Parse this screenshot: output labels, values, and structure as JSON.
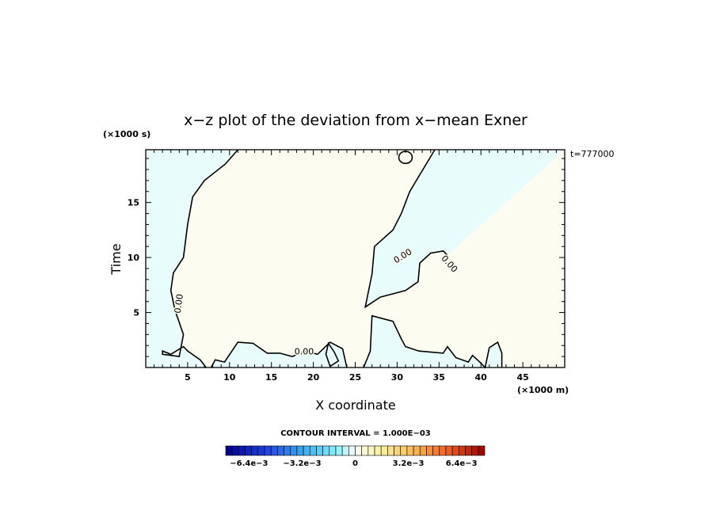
{
  "chart_data": {
    "type": "contour",
    "title": "x−z plot of the deviation from x−mean Exner",
    "xlabel": "X coordinate",
    "ylabel": "Time",
    "x_unit": "(×1000 m)",
    "y_unit": "(×1000 s)",
    "time_label": "t=777000",
    "xlim": [
      0,
      50
    ],
    "ylim": [
      0,
      19.8
    ],
    "x_ticks": [
      5,
      10,
      15,
      20,
      25,
      30,
      35,
      40,
      45
    ],
    "y_ticks": [
      5,
      10,
      15
    ],
    "contour_label": "0.00",
    "contour_interval_text": "CONTOUR INTERVAL = 1.000E−03",
    "colorbar": {
      "min": -0.0078,
      "max": 0.0078,
      "n_levels": 40,
      "tick_labels": [
        "−6.4e−3",
        "−3.2e−3",
        "0",
        "3.2e−3",
        "6.4e−3"
      ],
      "tick_values": [
        -0.0064,
        -0.0032,
        0,
        0.0032,
        0.0064
      ]
    },
    "regions": [
      {
        "sign": "negative",
        "color": "#e8fcfc"
      },
      {
        "sign": "positive",
        "color": "#fcfcf0"
      }
    ],
    "zero_contour": [
      [
        11,
        19.8
      ],
      [
        9.5,
        18.5
      ],
      [
        7,
        17
      ],
      [
        5.6,
        15.5
      ],
      [
        5,
        13
      ],
      [
        4.5,
        10
      ],
      [
        3.3,
        8.6
      ],
      [
        3,
        7
      ],
      [
        3.5,
        5.2
      ],
      [
        4.5,
        3
      ],
      [
        4,
        1
      ],
      [
        2,
        1.2
      ],
      [
        2,
        1.5
      ],
      [
        3,
        1.2
      ],
      [
        4.5,
        1.9
      ],
      [
        5,
        1.5
      ],
      [
        6.5,
        0.7
      ],
      [
        7.2,
        0
      ],
      [
        7.8,
        0
      ],
      [
        8.3,
        0.7
      ],
      [
        9.4,
        0.5
      ],
      [
        10.2,
        1.4
      ],
      [
        11,
        2.3
      ],
      [
        12.8,
        2.2
      ],
      [
        14.5,
        1.3
      ],
      [
        16,
        1.3
      ],
      [
        17.5,
        1
      ],
      [
        19,
        1.5
      ],
      [
        20.5,
        1.2
      ],
      [
        22,
        2.3
      ],
      [
        23.5,
        1.7
      ],
      [
        24,
        0
      ],
      [
        26,
        0
      ],
      [
        26.8,
        1.5
      ],
      [
        27,
        4.7
      ],
      [
        29.5,
        4.2
      ],
      [
        30.5,
        2.6
      ],
      [
        31,
        1.9
      ],
      [
        32.6,
        1.5
      ],
      [
        35.5,
        1.3
      ],
      [
        36,
        1.9
      ],
      [
        37,
        0.9
      ],
      [
        38.5,
        0.5
      ],
      [
        39,
        1.1
      ],
      [
        40,
        0.4
      ],
      [
        40.5,
        0
      ],
      [
        41,
        1.8
      ],
      [
        42,
        2.3
      ],
      [
        42.5,
        1.3
      ],
      [
        42.5,
        0
      ],
      [
        50,
        0
      ],
      [
        50,
        19.8
      ]
    ],
    "closed_loop": [
      [
        22,
        0.1
      ],
      [
        23,
        0.6
      ],
      [
        22.5,
        1.4
      ],
      [
        21.8,
        2.2
      ],
      [
        21.5,
        1.2
      ],
      [
        22,
        0.1
      ]
    ],
    "bay_contour": [
      [
        34.5,
        19.8
      ],
      [
        31.5,
        16
      ],
      [
        30.5,
        14
      ],
      [
        29.5,
        12.5
      ],
      [
        27.3,
        11
      ],
      [
        27,
        8.5
      ],
      [
        26.2,
        5.5
      ],
      [
        28,
        6.4
      ],
      [
        31,
        7
      ],
      [
        32.5,
        7.8
      ],
      [
        32.7,
        9.5
      ],
      [
        34,
        10.4
      ],
      [
        35.5,
        10.6
      ],
      [
        36,
        10.2
      ]
    ],
    "small_loop": {
      "x": 31,
      "y": 19.1,
      "rx": 0.8,
      "ry": 0.55
    }
  }
}
